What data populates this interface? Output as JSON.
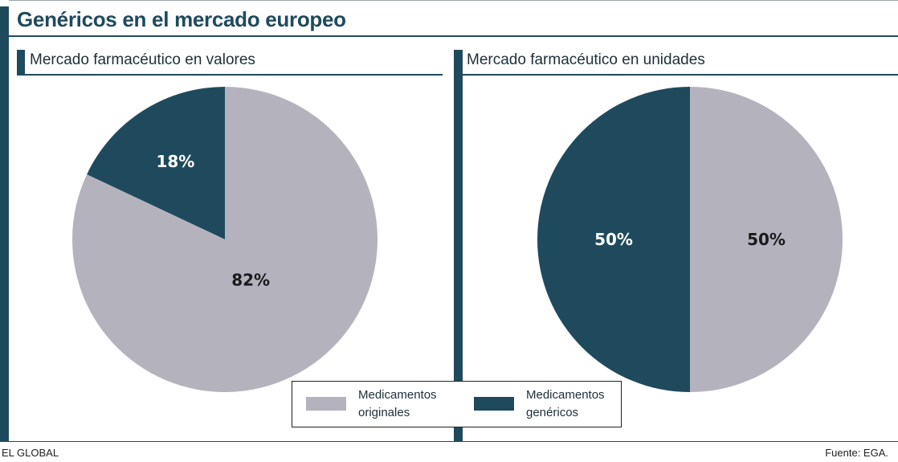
{
  "header": {
    "title": "Genéricos en el mercado europeo"
  },
  "footer": {
    "source_left": "EL GLOBAL",
    "source_right": "Fuente: EGA."
  },
  "colors": {
    "accent": "#1f4a5e",
    "originales": "#b4b3bd",
    "genericos": "#1f4a5e"
  },
  "legend": {
    "items": [
      {
        "label_line1": "Medicamentos",
        "label_line2": "originales",
        "color": "#b4b3bd"
      },
      {
        "label_line1": "Medicamentos",
        "label_line2": "genéricos",
        "color": "#1f4a5e"
      }
    ]
  },
  "chart_data": [
    {
      "type": "pie",
      "title": "Mercado farmacéutico en valores",
      "slices": [
        {
          "name": "Medicamentos genéricos",
          "value": 18,
          "label": "18%",
          "color": "#1f4a5e",
          "label_color": "#ffffff"
        },
        {
          "name": "Medicamentos originales",
          "value": 82,
          "label": "82%",
          "color": "#b4b3bd",
          "label_color": "#1a1a1a"
        }
      ]
    },
    {
      "type": "pie",
      "title": "Mercado farmacéutico en unidades",
      "slices": [
        {
          "name": "Medicamentos originales",
          "value": 50,
          "label": "50%",
          "color": "#b4b3bd",
          "label_color": "#1a1a1a"
        },
        {
          "name": "Medicamentos genéricos",
          "value": 50,
          "label": "50%",
          "color": "#1f4a5e",
          "label_color": "#ffffff"
        }
      ]
    }
  ]
}
